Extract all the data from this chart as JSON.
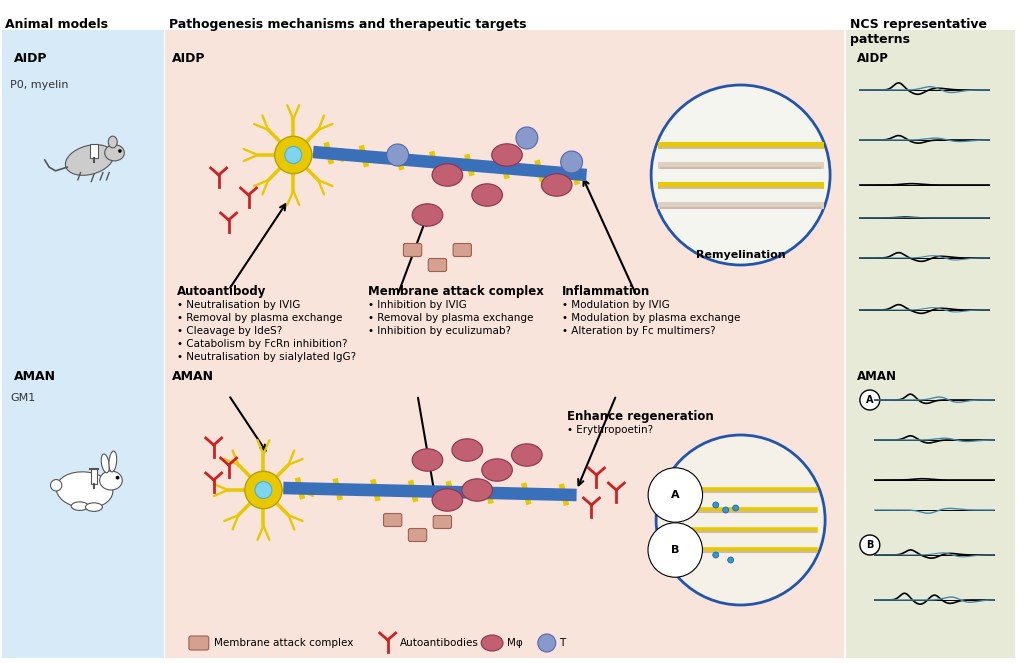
{
  "title": "Pathogenesis mechanisms and therapeutic targets",
  "left_panel_title": "Animal models",
  "right_panel_title": "NCS representative\npatterns",
  "left_bg": "#d6eaf8",
  "center_bg": "#f9e4dc",
  "right_bg": "#e8ead8",
  "aidp_label": "AIDP",
  "aman_label": "AMAN",
  "p0_myelin": "P0, myelin",
  "gm1": "GM1",
  "autoantibody_title": "Autoantibody",
  "autoantibody_bullets": [
    "• Neutralisation by IVIG",
    "• Removal by plasma exchange",
    "• Cleavage by IdeS?",
    "• Catabolism by FcRn inhibition?",
    "• Neutralisation by sialylated IgG?"
  ],
  "mac_title": "Membrane attack complex",
  "mac_bullets": [
    "• Inhibition by IVIG",
    "• Removal by plasma exchange",
    "• Inhibition by eculizumab?"
  ],
  "inflammation_title": "Inflammation",
  "inflammation_bullets": [
    "• Modulation by IVIG",
    "• Modulation by plasma exchange",
    "• Alteration by Fc multimers?"
  ],
  "enhance_title": "Enhance regeneration",
  "enhance_bullets": [
    "• Erythropoetin?"
  ],
  "remyelination_label": "Remyelination",
  "legend_mac": "Membrane attack complex",
  "legend_auto": "Autoantibodies",
  "legend_mphi": "Mφ",
  "legend_t": "T",
  "aman_a": "A",
  "aman_b": "B",
  "fig_width": 10.24,
  "fig_height": 6.63
}
